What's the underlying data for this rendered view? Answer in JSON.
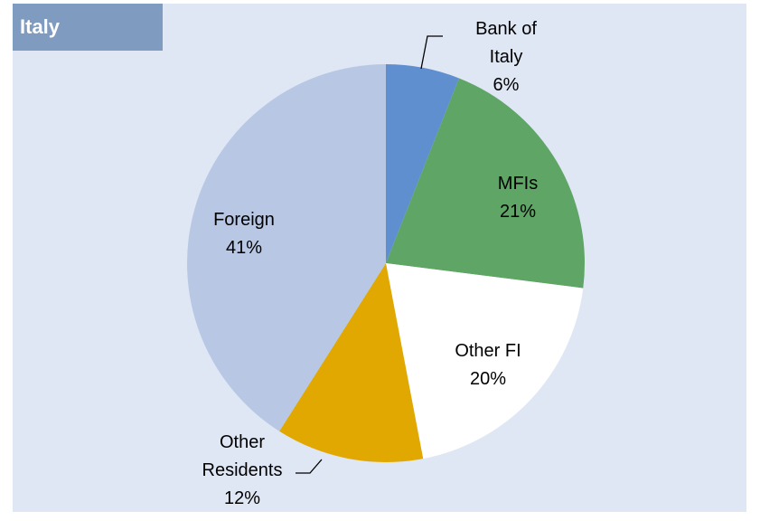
{
  "chart_data": {
    "type": "pie",
    "title": "Italy",
    "categories": [
      "Bank of Italy",
      "MFIs",
      "Other FI",
      "Other Residents",
      "Foreign"
    ],
    "values": [
      6,
      21,
      20,
      12,
      41
    ],
    "value_labels": [
      "6%",
      "21%",
      "20%",
      "12%",
      "41%"
    ],
    "colors": [
      "#5f8fce",
      "#5fa566",
      "#ffffff",
      "#e0a800",
      "#b8c8e4"
    ]
  }
}
